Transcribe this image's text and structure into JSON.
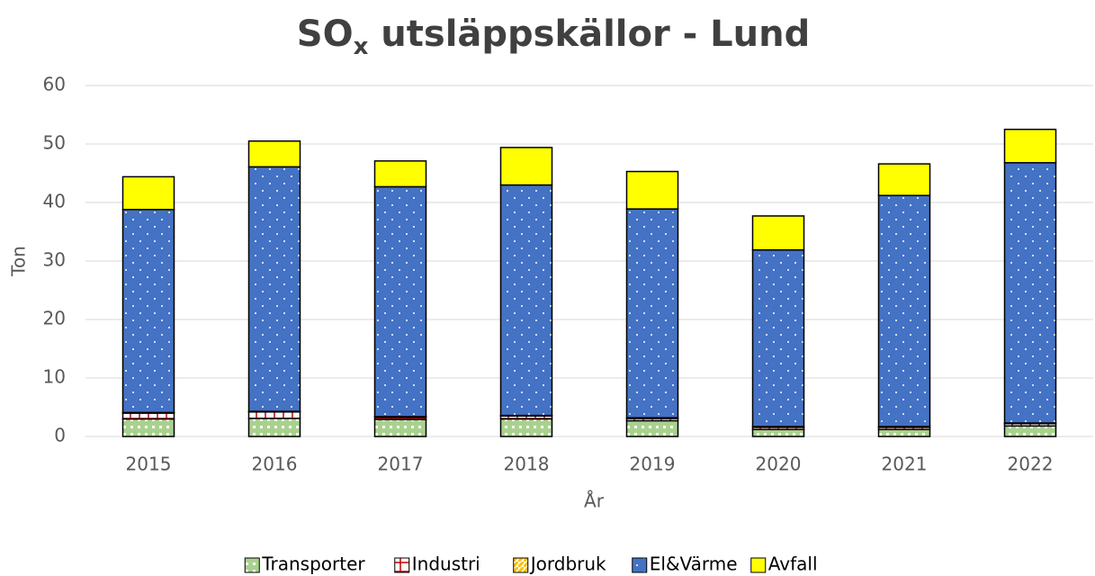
{
  "chart_data": {
    "type": "stacked_bar",
    "title": [
      "SO",
      "x",
      " utsläppskällor - Lund"
    ],
    "x_label": "År",
    "y_label": "Ton",
    "categories": [
      "2015",
      "2016",
      "2017",
      "2018",
      "2019",
      "2020",
      "2021",
      "2022"
    ],
    "series": [
      {
        "name": "Transporter",
        "color": "#a9d18e",
        "values": [
          3.0,
          3.1,
          2.9,
          3.0,
          2.7,
          1.2,
          1.2,
          1.8
        ]
      },
      {
        "name": "Industri",
        "color": "#c00000",
        "values": [
          1.0,
          1.1,
          0.4,
          0.5,
          0.4,
          0.4,
          0.4,
          0.4
        ]
      },
      {
        "name": "Jordbruk",
        "color": "#ffc000",
        "values": [
          0.1,
          0.1,
          0.1,
          0.1,
          0.1,
          0.1,
          0.1,
          0.1
        ]
      },
      {
        "name": "El&Värme",
        "color": "#4472c4",
        "values": [
          34.7,
          41.8,
          39.3,
          39.4,
          35.7,
          30.2,
          39.5,
          44.5
        ]
      },
      {
        "name": "Avfall",
        "color": "#ffff00",
        "values": [
          5.6,
          4.4,
          4.4,
          6.4,
          6.4,
          5.8,
          5.4,
          5.7
        ]
      }
    ],
    "ylim": [
      0,
      60
    ],
    "yticks": [
      0,
      10,
      20,
      30,
      40,
      50,
      60
    ],
    "grid": true,
    "legend": "bottom"
  }
}
